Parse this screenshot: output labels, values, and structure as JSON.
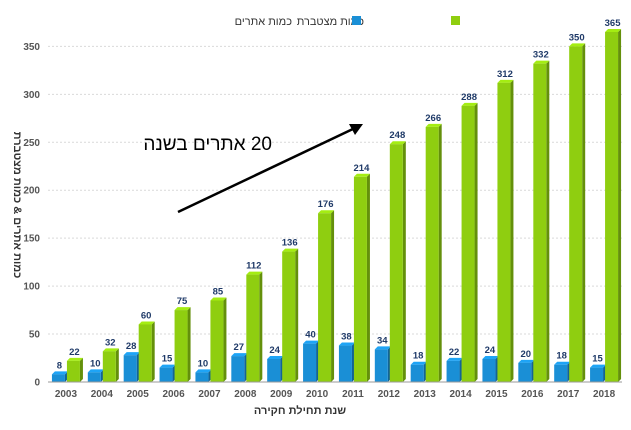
{
  "chart_data": {
    "type": "bar",
    "xlabel": "שנת תחילת חקירה",
    "ylabel": "כמות אתרים & כמות מצטברת",
    "ylim": [
      0,
      365
    ],
    "yticks": [
      0,
      50,
      100,
      150,
      200,
      250,
      300,
      350
    ],
    "categories": [
      "2003",
      "2004",
      "2005",
      "2006",
      "2007",
      "2008",
      "2009",
      "2010",
      "2011",
      "2012",
      "2013",
      "2014",
      "2015",
      "2016",
      "2017",
      "2018"
    ],
    "series": [
      {
        "name": "כמות אתרים",
        "color": "#1a8fd6",
        "values": [
          8,
          10,
          28,
          15,
          10,
          27,
          24,
          40,
          38,
          34,
          18,
          22,
          24,
          20,
          18,
          15
        ]
      },
      {
        "name": "כמות מצטברת",
        "color": "#8fce10",
        "values": [
          22,
          32,
          60,
          75,
          85,
          112,
          136,
          176,
          214,
          248,
          266,
          288,
          312,
          332,
          350,
          365
        ]
      }
    ],
    "legend_position": "top-right",
    "grid": true,
    "annotation": {
      "text": "20 אתרים בשנה"
    }
  }
}
